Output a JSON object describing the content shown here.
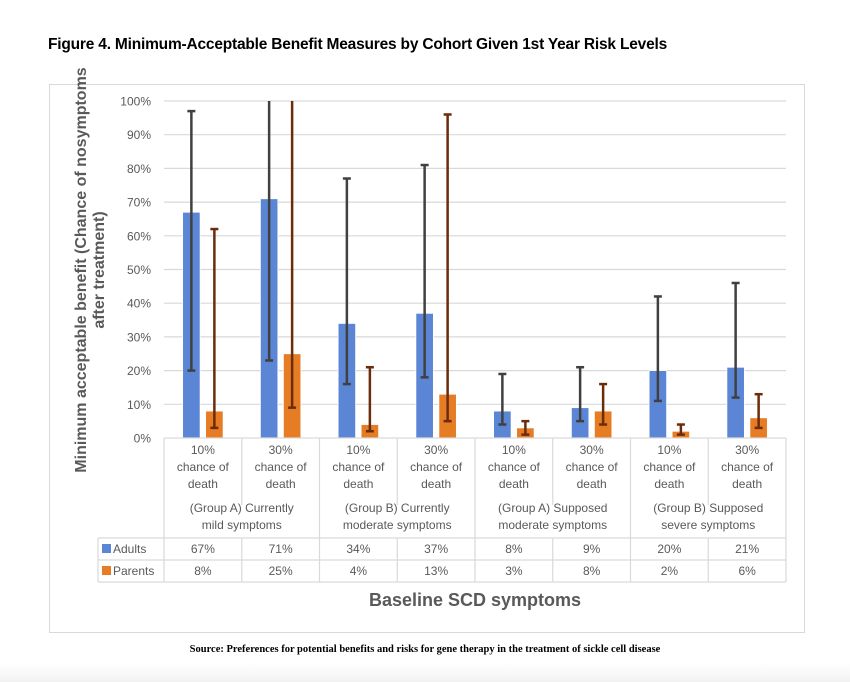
{
  "figure": {
    "title": "Figure 4.  Minimum-Acceptable Benefit Measures by Cohort Given 1st Year Risk Levels",
    "source": "Source: Preferences for potential benefits and risks for gene therapy in the treatment of sickle cell disease"
  },
  "chart_data": {
    "type": "bar",
    "title": "",
    "xlabel": "Baseline SCD symptoms",
    "ylabel": "Minimum acceptable benefit (Chance of nosymptoms after treatment)",
    "ylim": [
      0,
      100
    ],
    "yticks": [
      0,
      10,
      20,
      30,
      40,
      50,
      60,
      70,
      80,
      90,
      100
    ],
    "ytick_labels": [
      "0%",
      "10%",
      "20%",
      "30%",
      "40%",
      "50%",
      "60%",
      "70%",
      "80%",
      "90%",
      "100%"
    ],
    "grid": true,
    "legend": "data-table",
    "groups": [
      {
        "label": "(Group A) Currently mild symptoms",
        "line1": "(Group A) Currently",
        "line2": "mild symptoms"
      },
      {
        "label": "(Group B) Currently moderate symptoms",
        "line1": "(Group B) Currently",
        "line2": "moderate symptoms"
      },
      {
        "label": "(Group A) Supposed moderate symptoms",
        "line1": "(Group A) Supposed",
        "line2": "moderate symptoms"
      },
      {
        "label": "(Group B) Supposed severe symptoms",
        "line1": "(Group B) Supposed",
        "line2": "severe symptoms"
      }
    ],
    "categories": [
      {
        "line1": "10%",
        "line2": "chance of",
        "line3": "death",
        "group": 0
      },
      {
        "line1": "30%",
        "line2": "chance of",
        "line3": "death",
        "group": 0
      },
      {
        "line1": "10%",
        "line2": "chance of",
        "line3": "death",
        "group": 1
      },
      {
        "line1": "30%",
        "line2": "chance of",
        "line3": "death",
        "group": 1
      },
      {
        "line1": "10%",
        "line2": "chance of",
        "line3": "death",
        "group": 2
      },
      {
        "line1": "30%",
        "line2": "chance of",
        "line3": "death",
        "group": 2
      },
      {
        "line1": "10%",
        "line2": "chance of",
        "line3": "death",
        "group": 3
      },
      {
        "line1": "30%",
        "line2": "chance of",
        "line3": "death",
        "group": 3
      }
    ],
    "series": [
      {
        "name": "Adults",
        "color": "#5b86d6",
        "error_color": "#404040",
        "values": [
          67,
          71,
          34,
          37,
          8,
          9,
          20,
          21
        ],
        "labels": [
          "67%",
          "71%",
          "34%",
          "37%",
          "8%",
          "9%",
          "20%",
          "21%"
        ],
        "error_low": [
          20,
          23,
          16,
          18,
          4,
          5,
          11,
          12
        ],
        "error_high": [
          97,
          100,
          77,
          81,
          19,
          21,
          42,
          46
        ]
      },
      {
        "name": "Parents",
        "color": "#e67c24",
        "error_color": "#6b2c0c",
        "values": [
          8,
          25,
          4,
          13,
          3,
          8,
          2,
          6
        ],
        "labels": [
          "8%",
          "25%",
          "4%",
          "13%",
          "3%",
          "8%",
          "2%",
          "6%"
        ],
        "error_low": [
          3,
          9,
          2,
          5,
          1,
          4,
          1,
          3
        ],
        "error_high": [
          62,
          100,
          21,
          96,
          5,
          16,
          4,
          13
        ]
      }
    ]
  }
}
